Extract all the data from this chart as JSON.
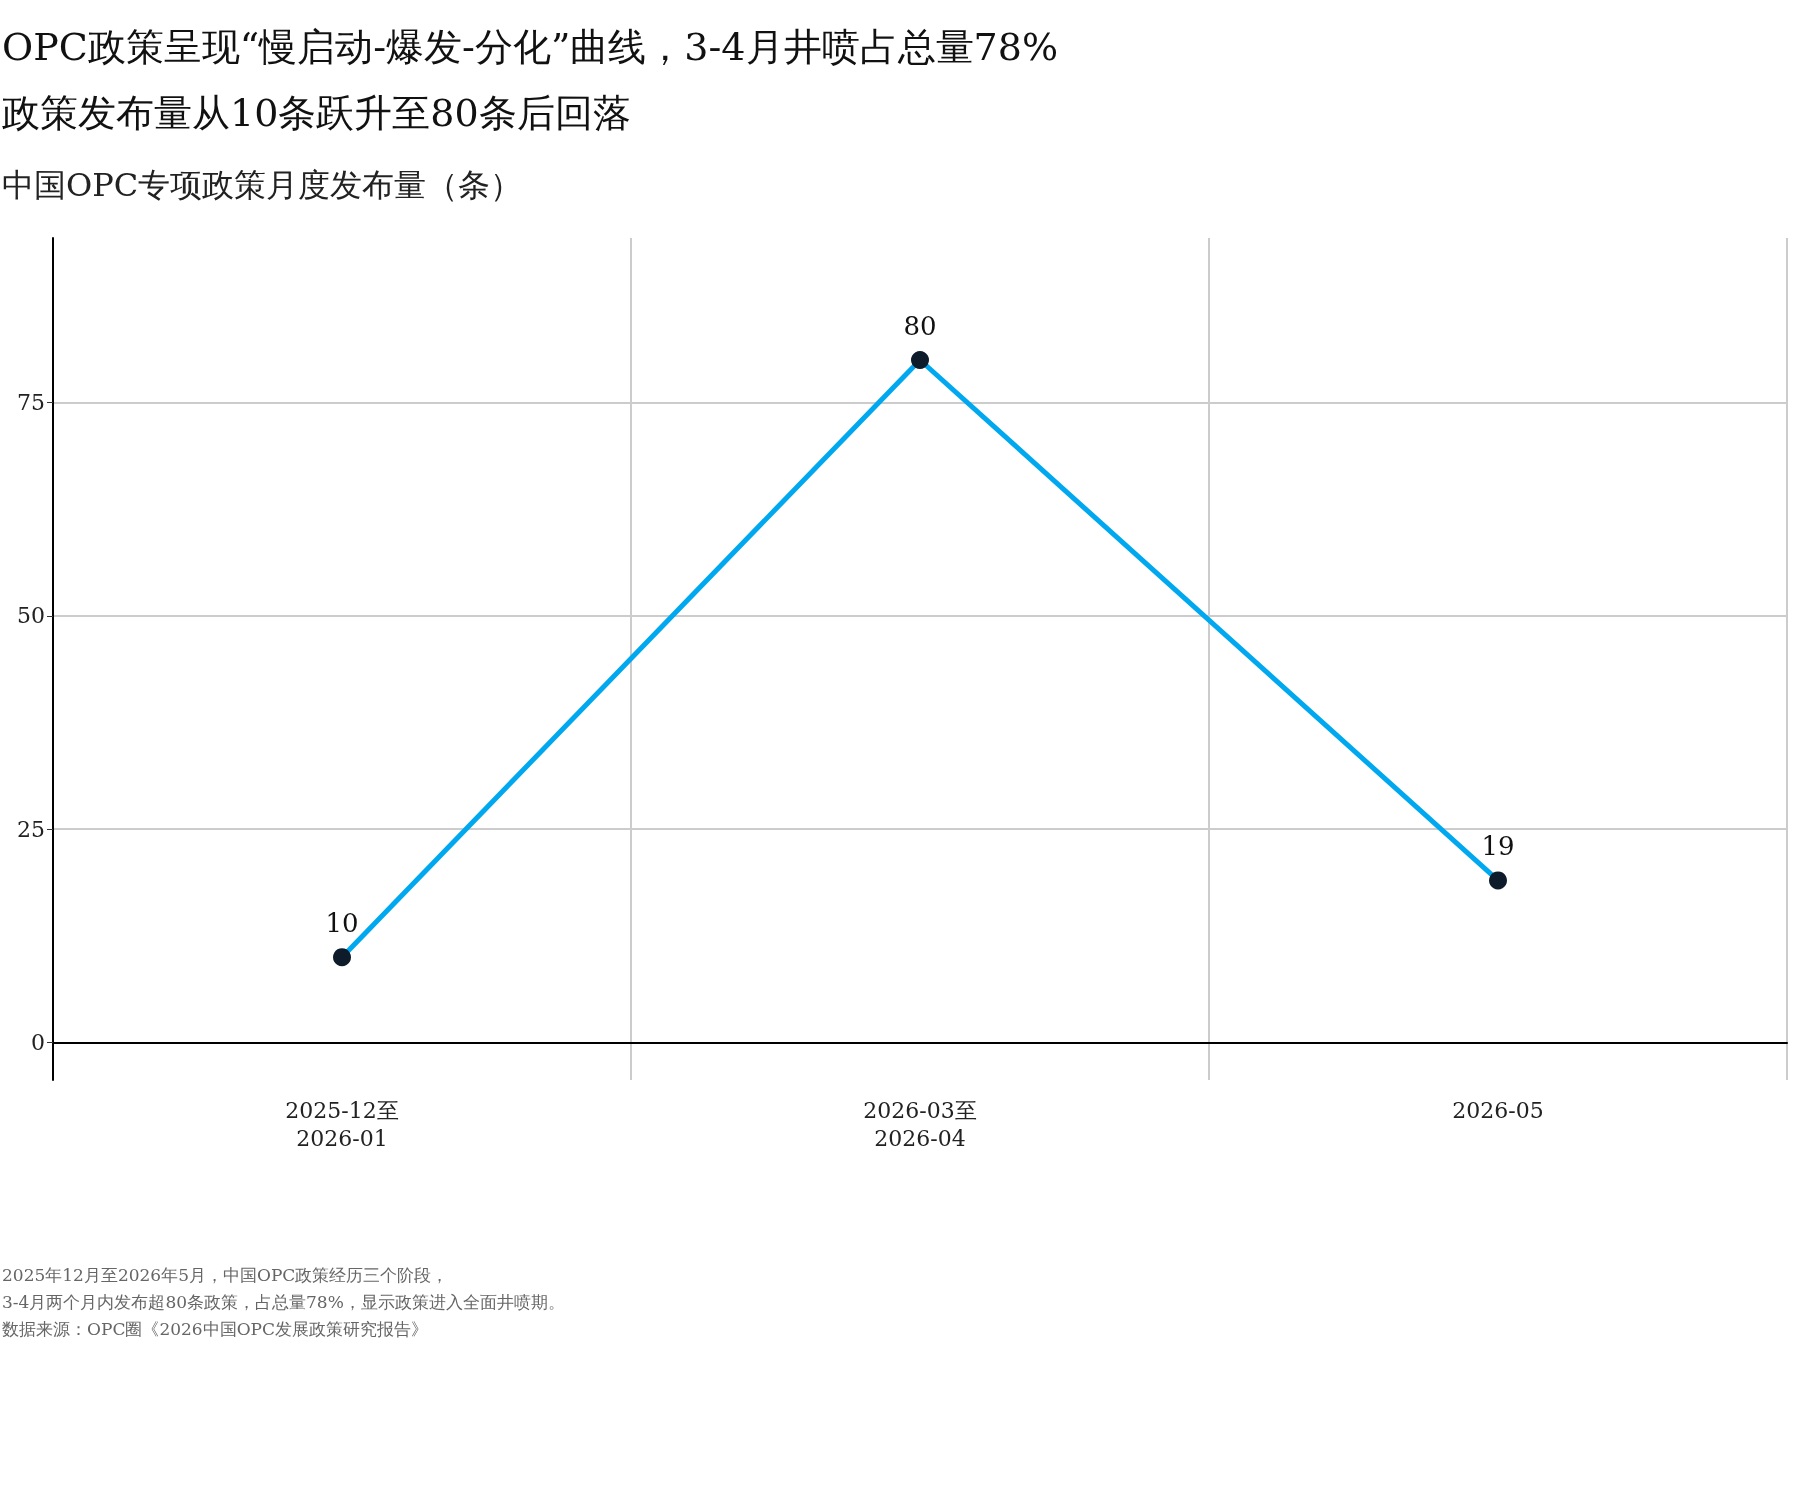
{
  "chart_data": {
    "type": "line",
    "title": "OPC政策呈现“慢启动-爆发-分化”曲线，3-4月井喷占总量78%\n政策发布量从10条跃升至80条后回落",
    "subtitle": "中国OPC专项政策月度发布量（条）",
    "categories": [
      "2025-12至\n2026-01",
      "2026-03至\n2026-04",
      "2026-05"
    ],
    "series": [
      {
        "color": "#00a8f0",
        "colors": [
          "#0d1b2a",
          "#0d1b2a",
          "#0d1b2a"
        ],
        "values": [
          10,
          80,
          19
        ]
      }
    ],
    "ylim": [
      -4.4,
      94.3
    ],
    "yticks": [
      0,
      25,
      50,
      75
    ],
    "grid": true,
    "data_labels": true,
    "marker": "circle",
    "line_style": "solid",
    "annotations": [
      "2025年12月至2026年5月，中国OPC政策经历三个阶段，",
      "3-4月两个月内发布超80条政策，占总量78%，显示政策进入全面井喷期。",
      "数据来源：OPC圈《2026中国OPC发展政策研究报告》"
    ]
  }
}
